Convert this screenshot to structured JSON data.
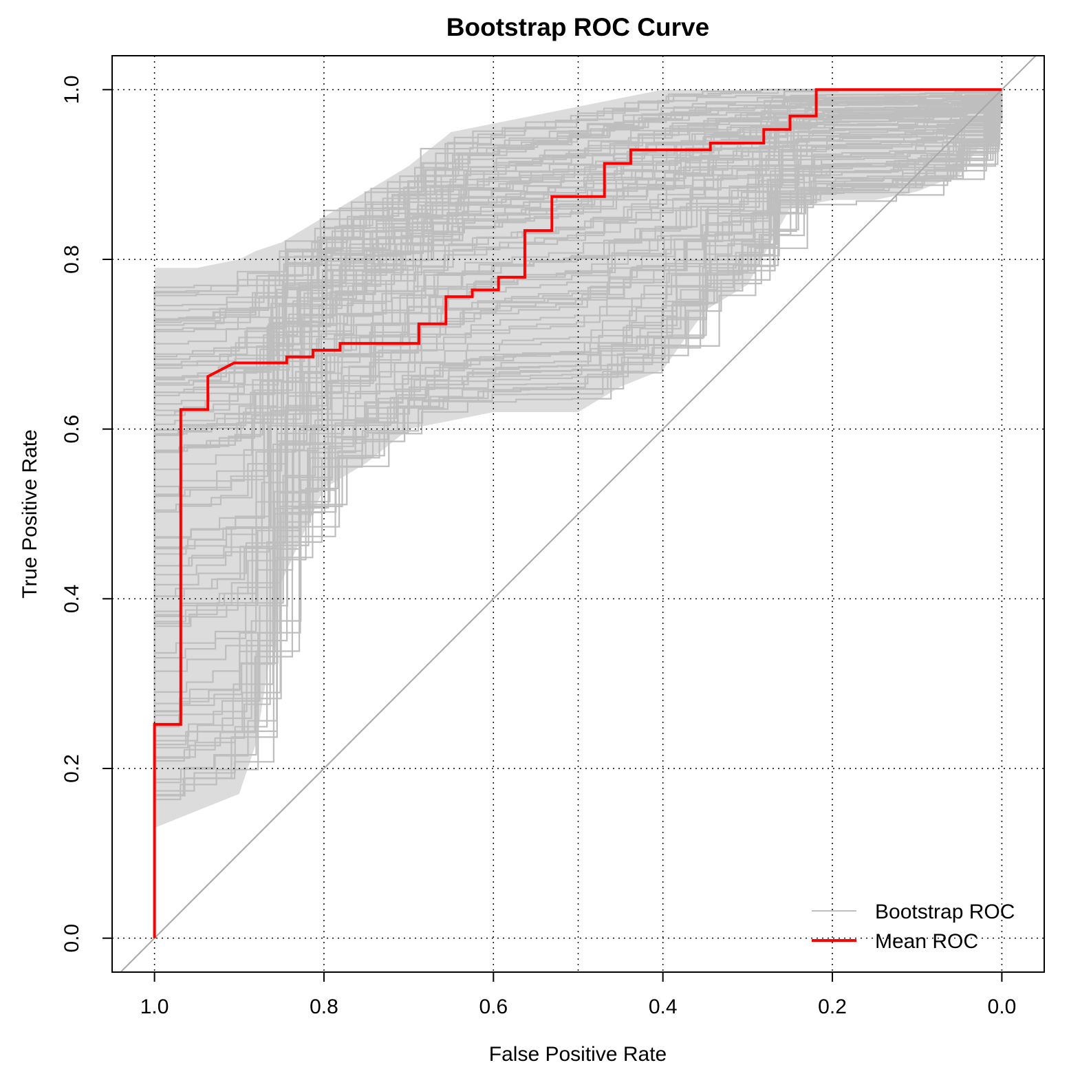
{
  "chart_data": {
    "type": "line",
    "title": "Bootstrap ROC Curve",
    "xlabel": "False Positive Rate",
    "ylabel": "True Positive Rate",
    "x_axis_reversed": true,
    "xlim": [
      1.05,
      -0.05
    ],
    "ylim": [
      -0.04,
      1.04
    ],
    "x_ticks": [
      1.0,
      0.8,
      0.6,
      0.4,
      0.2,
      0.0
    ],
    "x_tick_labels": [
      "1.0",
      "0.8",
      "0.6",
      "0.4",
      "0.2",
      "0.0"
    ],
    "y_ticks": [
      0.0,
      0.2,
      0.4,
      0.6,
      0.8,
      1.0
    ],
    "y_tick_labels": [
      "0.0",
      "0.2",
      "0.4",
      "0.6",
      "0.8",
      "1.0"
    ],
    "grid": "dotted",
    "diagonal_reference": true,
    "band_fill_color": "#dcdcdc",
    "legend_placement": "bottom-right",
    "series": [
      {
        "name": "Bootstrap ROC",
        "color": "#bebebe",
        "count_hint": "many",
        "band": {
          "x": [
            1.0,
            0.95,
            0.9,
            0.88,
            0.85,
            0.8,
            0.75,
            0.7,
            0.65,
            0.6,
            0.55,
            0.5,
            0.45,
            0.4,
            0.35,
            0.3,
            0.25,
            0.2,
            0.15,
            0.1,
            0.05,
            0.0
          ],
          "upper": [
            0.79,
            0.79,
            0.8,
            0.81,
            0.82,
            0.85,
            0.88,
            0.91,
            0.95,
            0.96,
            0.97,
            0.98,
            0.99,
            1.0,
            1.0,
            1.0,
            1.0,
            1.0,
            1.0,
            1.0,
            1.0,
            1.0
          ],
          "lower": [
            0.13,
            0.15,
            0.17,
            0.23,
            0.42,
            0.53,
            0.56,
            0.6,
            0.61,
            0.62,
            0.62,
            0.62,
            0.65,
            0.67,
            0.74,
            0.77,
            0.86,
            0.87,
            0.87,
            0.88,
            0.9,
            0.97
          ]
        }
      },
      {
        "name": "Mean ROC",
        "color": "#ff0000",
        "x": [
          1.0,
          1.0,
          0.969,
          0.969,
          0.937,
          0.937,
          0.906,
          0.844,
          0.844,
          0.813,
          0.813,
          0.781,
          0.781,
          0.688,
          0.688,
          0.656,
          0.656,
          0.625,
          0.625,
          0.594,
          0.594,
          0.563,
          0.563,
          0.531,
          0.531,
          0.469,
          0.469,
          0.438,
          0.438,
          0.344,
          0.344,
          0.281,
          0.281,
          0.25,
          0.25,
          0.219,
          0.219,
          0.0
        ],
        "y": [
          0.0,
          0.252,
          0.252,
          0.623,
          0.623,
          0.662,
          0.678,
          0.678,
          0.685,
          0.685,
          0.693,
          0.693,
          0.701,
          0.701,
          0.724,
          0.724,
          0.756,
          0.756,
          0.764,
          0.764,
          0.779,
          0.779,
          0.834,
          0.834,
          0.874,
          0.874,
          0.913,
          0.913,
          0.929,
          0.929,
          0.937,
          0.937,
          0.953,
          0.953,
          0.969,
          0.969,
          1.0,
          1.0
        ]
      }
    ]
  }
}
